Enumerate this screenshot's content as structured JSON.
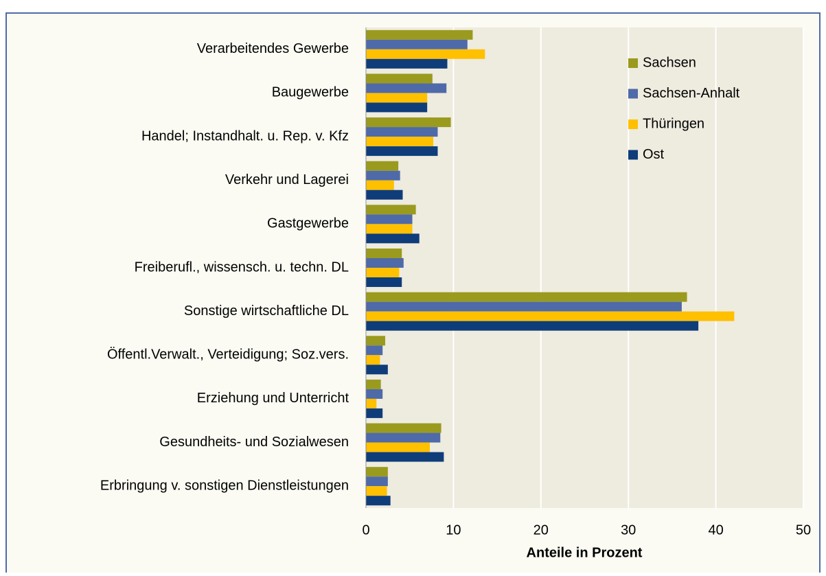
{
  "chart_data": {
    "type": "bar",
    "orientation": "horizontal",
    "x_label": "Anteile in Prozent",
    "categories": [
      "Verarbeitendes Gewerbe",
      "Baugewerbe",
      "Handel; Instandhalt. u. Rep. v. Kfz",
      "Verkehr und Lagerei",
      "Gastgewerbe",
      "Freiberufl., wissensch. u. techn. DL",
      "Sonstige wirtschaftliche DL",
      "Öffentl.Verwalt., Verteidigung; Soz.vers.",
      "Erziehung und Unterricht",
      "Gesundheits- und Sozialwesen",
      "Erbringung v. sonstigen Dienstleistungen"
    ],
    "series": [
      {
        "name": "Sachsen",
        "color": "#9a9a1e",
        "values": [
          12.2,
          7.6,
          9.7,
          3.7,
          5.7,
          4.1,
          36.7,
          2.2,
          1.7,
          8.6,
          2.5
        ]
      },
      {
        "name": "Sachsen-Anhalt",
        "color": "#4f6aa8",
        "values": [
          11.6,
          9.2,
          8.2,
          3.9,
          5.3,
          4.3,
          36.1,
          1.9,
          1.9,
          8.5,
          2.5
        ]
      },
      {
        "name": "Thüringen",
        "color": "#ffc000",
        "values": [
          13.6,
          7.0,
          7.7,
          3.2,
          5.3,
          3.8,
          42.1,
          1.6,
          1.2,
          7.3,
          2.4
        ]
      },
      {
        "name": "Ost",
        "color": "#0f3d7a",
        "values": [
          9.3,
          7.0,
          8.2,
          4.2,
          6.1,
          4.1,
          38.0,
          2.5,
          1.9,
          8.9,
          2.8
        ]
      }
    ],
    "xlim": [
      0,
      50
    ],
    "xticks": [
      0,
      10,
      20,
      30,
      40,
      50
    ],
    "grid": true,
    "legend": "top-right"
  }
}
